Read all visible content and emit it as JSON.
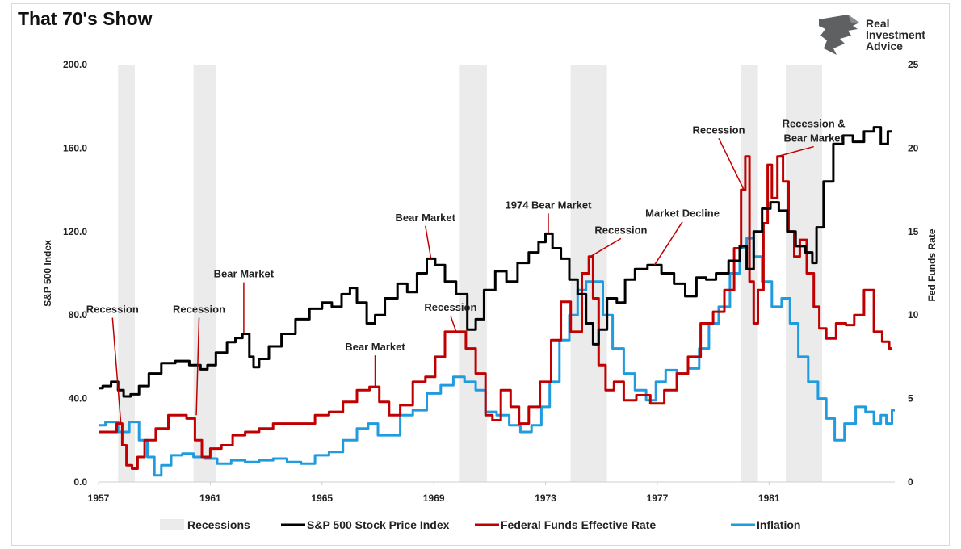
{
  "title": "That 70's Show",
  "logo": {
    "line1": "Real",
    "line2": "Investment",
    "line3": "Advice"
  },
  "chart_data": {
    "type": "line",
    "y_left": {
      "label": "S&P 500 Index",
      "range": [
        0,
        200
      ],
      "ticks": [
        "0.0",
        "40.0",
        "80.0",
        "120.0",
        "160.0",
        "200.0"
      ]
    },
    "y_right": {
      "label": "Fed Funds Rate",
      "range": [
        0,
        25
      ],
      "ticks": [
        "0",
        "5",
        "10",
        "15",
        "20",
        "25"
      ]
    },
    "x": {
      "range": [
        1957,
        1985.5
      ],
      "ticks": [
        "1957",
        "1961",
        "1965",
        "1969",
        "1973",
        "1977",
        "1981"
      ]
    },
    "recessions": [
      [
        1957.7,
        1958.3
      ],
      [
        1960.4,
        1961.2
      ],
      [
        1969.9,
        1970.9
      ],
      [
        1973.9,
        1975.2
      ],
      [
        1980.0,
        1980.6
      ],
      [
        1981.6,
        1982.9
      ]
    ],
    "series": [
      {
        "name": "S&P 500 Stock Price Index",
        "color": "#000000",
        "axis": "left",
        "points": [
          [
            1957.0,
            45
          ],
          [
            1957.3,
            46
          ],
          [
            1957.6,
            48
          ],
          [
            1957.8,
            44
          ],
          [
            1958.0,
            41
          ],
          [
            1958.3,
            42
          ],
          [
            1958.6,
            46
          ],
          [
            1959.0,
            52
          ],
          [
            1959.5,
            57
          ],
          [
            1960.0,
            58
          ],
          [
            1960.5,
            56
          ],
          [
            1960.8,
            54
          ],
          [
            1961.0,
            56
          ],
          [
            1961.4,
            62
          ],
          [
            1961.8,
            67
          ],
          [
            1962.0,
            69
          ],
          [
            1962.3,
            71
          ],
          [
            1962.5,
            60
          ],
          [
            1962.6,
            55
          ],
          [
            1962.9,
            59
          ],
          [
            1963.3,
            65
          ],
          [
            1963.8,
            71
          ],
          [
            1964.3,
            78
          ],
          [
            1964.8,
            83
          ],
          [
            1965.2,
            86
          ],
          [
            1965.5,
            84
          ],
          [
            1965.9,
            90
          ],
          [
            1966.1,
            93
          ],
          [
            1966.4,
            86
          ],
          [
            1966.8,
            76
          ],
          [
            1967.0,
            80
          ],
          [
            1967.5,
            88
          ],
          [
            1967.9,
            95
          ],
          [
            1968.2,
            91
          ],
          [
            1968.6,
            100
          ],
          [
            1968.9,
            107
          ],
          [
            1969.2,
            104
          ],
          [
            1969.6,
            96
          ],
          [
            1970.0,
            90
          ],
          [
            1970.4,
            73
          ],
          [
            1970.6,
            78
          ],
          [
            1971.0,
            92
          ],
          [
            1971.4,
            101
          ],
          [
            1971.8,
            96
          ],
          [
            1972.2,
            105
          ],
          [
            1972.6,
            110
          ],
          [
            1972.9,
            115
          ],
          [
            1973.1,
            119
          ],
          [
            1973.4,
            112
          ],
          [
            1973.7,
            107
          ],
          [
            1974.0,
            97
          ],
          [
            1974.3,
            90
          ],
          [
            1974.6,
            76
          ],
          [
            1974.8,
            66
          ],
          [
            1975.0,
            73
          ],
          [
            1975.4,
            88
          ],
          [
            1975.7,
            86
          ],
          [
            1976.0,
            97
          ],
          [
            1976.4,
            102
          ],
          [
            1976.9,
            104
          ],
          [
            1977.4,
            100
          ],
          [
            1977.8,
            95
          ],
          [
            1978.2,
            89
          ],
          [
            1978.6,
            98
          ],
          [
            1978.9,
            97
          ],
          [
            1979.3,
            100
          ],
          [
            1979.8,
            106
          ],
          [
            1980.1,
            113
          ],
          [
            1980.3,
            102
          ],
          [
            1980.6,
            120
          ],
          [
            1980.9,
            131
          ],
          [
            1981.2,
            134
          ],
          [
            1981.5,
            130
          ],
          [
            1981.8,
            120
          ],
          [
            1982.1,
            113
          ],
          [
            1982.5,
            110
          ],
          [
            1982.6,
            105
          ],
          [
            1982.8,
            122
          ],
          [
            1983.1,
            144
          ],
          [
            1983.5,
            162
          ],
          [
            1983.8,
            166
          ],
          [
            1984.2,
            163
          ],
          [
            1984.6,
            168
          ],
          [
            1984.9,
            170
          ],
          [
            1985.1,
            162
          ],
          [
            1985.4,
            168
          ]
        ]
      },
      {
        "name": "Federal Funds Effective Rate",
        "color": "#c00000",
        "axis": "right",
        "points": [
          [
            1957.0,
            3.0
          ],
          [
            1957.5,
            3.0
          ],
          [
            1957.8,
            3.5
          ],
          [
            1957.9,
            2.2
          ],
          [
            1958.1,
            1.0
          ],
          [
            1958.3,
            0.8
          ],
          [
            1958.5,
            1.5
          ],
          [
            1958.8,
            2.5
          ],
          [
            1959.3,
            3.2
          ],
          [
            1959.7,
            4.0
          ],
          [
            1960.0,
            4.0
          ],
          [
            1960.3,
            3.8
          ],
          [
            1960.6,
            2.5
          ],
          [
            1960.8,
            1.5
          ],
          [
            1961.2,
            2.0
          ],
          [
            1961.6,
            2.2
          ],
          [
            1962.0,
            2.8
          ],
          [
            1962.5,
            3.0
          ],
          [
            1963.0,
            3.2
          ],
          [
            1963.5,
            3.5
          ],
          [
            1964.0,
            3.5
          ],
          [
            1964.5,
            3.5
          ],
          [
            1965.0,
            4.0
          ],
          [
            1965.5,
            4.2
          ],
          [
            1966.0,
            4.8
          ],
          [
            1966.5,
            5.5
          ],
          [
            1966.9,
            5.7
          ],
          [
            1967.2,
            4.8
          ],
          [
            1967.6,
            4.0
          ],
          [
            1968.0,
            4.6
          ],
          [
            1968.5,
            6.0
          ],
          [
            1968.9,
            6.3
          ],
          [
            1969.2,
            7.5
          ],
          [
            1969.6,
            9.0
          ],
          [
            1970.0,
            9.0
          ],
          [
            1970.3,
            8.0
          ],
          [
            1970.7,
            6.5
          ],
          [
            1971.0,
            4.0
          ],
          [
            1971.2,
            3.7
          ],
          [
            1971.6,
            5.5
          ],
          [
            1971.9,
            4.5
          ],
          [
            1972.2,
            3.5
          ],
          [
            1972.6,
            4.5
          ],
          [
            1973.0,
            6.0
          ],
          [
            1973.4,
            8.5
          ],
          [
            1973.7,
            10.8
          ],
          [
            1974.1,
            9.0
          ],
          [
            1974.5,
            12.5
          ],
          [
            1974.6,
            13.5
          ],
          [
            1974.8,
            11.0
          ],
          [
            1975.0,
            7.0
          ],
          [
            1975.3,
            5.5
          ],
          [
            1975.6,
            6.0
          ],
          [
            1976.0,
            4.9
          ],
          [
            1976.5,
            5.2
          ],
          [
            1977.0,
            4.7
          ],
          [
            1977.5,
            5.5
          ],
          [
            1977.9,
            6.5
          ],
          [
            1978.3,
            7.5
          ],
          [
            1978.8,
            9.5
          ],
          [
            1979.2,
            10.2
          ],
          [
            1979.6,
            11.5
          ],
          [
            1979.9,
            14.0
          ],
          [
            1980.1,
            17.5
          ],
          [
            1980.2,
            19.5
          ],
          [
            1980.4,
            12.0
          ],
          [
            1980.5,
            9.5
          ],
          [
            1980.7,
            11.5
          ],
          [
            1980.9,
            15.5
          ],
          [
            1981.0,
            19.0
          ],
          [
            1981.2,
            17.0
          ],
          [
            1981.4,
            19.5
          ],
          [
            1981.6,
            18.0
          ],
          [
            1981.8,
            15.0
          ],
          [
            1982.0,
            13.5
          ],
          [
            1982.2,
            14.5
          ],
          [
            1982.5,
            12.5
          ],
          [
            1982.7,
            10.5
          ],
          [
            1982.9,
            9.2
          ],
          [
            1983.2,
            8.6
          ],
          [
            1983.6,
            9.5
          ],
          [
            1983.9,
            9.4
          ],
          [
            1984.2,
            10.0
          ],
          [
            1984.6,
            11.5
          ],
          [
            1984.9,
            9.0
          ],
          [
            1985.2,
            8.4
          ],
          [
            1985.4,
            8.0
          ]
        ]
      },
      {
        "name": "Inflation",
        "color": "#1f9bde",
        "axis": "right",
        "points": [
          [
            1957.0,
            3.4
          ],
          [
            1957.5,
            3.6
          ],
          [
            1957.9,
            3.0
          ],
          [
            1958.3,
            3.6
          ],
          [
            1958.6,
            2.5
          ],
          [
            1958.9,
            1.5
          ],
          [
            1959.1,
            0.4
          ],
          [
            1959.4,
            1.0
          ],
          [
            1959.8,
            1.6
          ],
          [
            1960.2,
            1.7
          ],
          [
            1960.6,
            1.5
          ],
          [
            1961.0,
            1.4
          ],
          [
            1961.5,
            1.1
          ],
          [
            1962.0,
            1.3
          ],
          [
            1962.5,
            1.2
          ],
          [
            1963.0,
            1.3
          ],
          [
            1963.5,
            1.4
          ],
          [
            1964.0,
            1.2
          ],
          [
            1964.5,
            1.1
          ],
          [
            1965.0,
            1.6
          ],
          [
            1965.5,
            1.8
          ],
          [
            1966.0,
            2.5
          ],
          [
            1966.5,
            3.2
          ],
          [
            1966.8,
            3.5
          ],
          [
            1967.2,
            2.8
          ],
          [
            1967.6,
            2.8
          ],
          [
            1968.0,
            4.0
          ],
          [
            1968.5,
            4.3
          ],
          [
            1969.0,
            5.3
          ],
          [
            1969.5,
            5.8
          ],
          [
            1969.9,
            6.3
          ],
          [
            1970.3,
            6.0
          ],
          [
            1970.7,
            5.5
          ],
          [
            1971.0,
            4.2
          ],
          [
            1971.5,
            4.0
          ],
          [
            1971.9,
            3.4
          ],
          [
            1972.3,
            3.0
          ],
          [
            1972.7,
            3.4
          ],
          [
            1973.0,
            4.5
          ],
          [
            1973.3,
            6.0
          ],
          [
            1973.7,
            8.5
          ],
          [
            1974.0,
            10.0
          ],
          [
            1974.3,
            11.5
          ],
          [
            1974.6,
            12.0
          ],
          [
            1974.9,
            12.0
          ],
          [
            1975.2,
            10.0
          ],
          [
            1975.6,
            8.0
          ],
          [
            1976.0,
            6.5
          ],
          [
            1976.4,
            5.5
          ],
          [
            1976.8,
            4.9
          ],
          [
            1977.1,
            6.0
          ],
          [
            1977.5,
            6.7
          ],
          [
            1977.9,
            6.5
          ],
          [
            1978.3,
            6.8
          ],
          [
            1978.7,
            8.0
          ],
          [
            1979.0,
            9.5
          ],
          [
            1979.4,
            10.5
          ],
          [
            1979.8,
            12.5
          ],
          [
            1980.1,
            14.0
          ],
          [
            1980.3,
            14.6
          ],
          [
            1980.6,
            13.5
          ],
          [
            1980.9,
            12.0
          ],
          [
            1981.3,
            10.5
          ],
          [
            1981.6,
            11.0
          ],
          [
            1981.9,
            9.5
          ],
          [
            1982.2,
            7.5
          ],
          [
            1982.6,
            6.0
          ],
          [
            1982.9,
            5.0
          ],
          [
            1983.2,
            3.8
          ],
          [
            1983.5,
            2.5
          ],
          [
            1983.9,
            3.5
          ],
          [
            1984.3,
            4.5
          ],
          [
            1984.6,
            4.2
          ],
          [
            1984.9,
            3.5
          ],
          [
            1985.1,
            4.0
          ],
          [
            1985.3,
            3.5
          ],
          [
            1985.5,
            4.3
          ]
        ]
      }
    ],
    "annotations": [
      {
        "text": "Recession",
        "x": 1957.8,
        "y": 3.5,
        "axis": "right",
        "label_x": 1957.5,
        "label_y": 81
      },
      {
        "text": "Recession",
        "x": 1960.5,
        "y": 4.0,
        "axis": "right",
        "label_x": 1960.6,
        "label_y": 81
      },
      {
        "text": "Bear Market",
        "x": 1962.2,
        "y": 71,
        "axis": "left",
        "label_x": 1962.2,
        "label_y": 98
      },
      {
        "text": "Bear Market",
        "x": 1966.9,
        "y": 5.7,
        "axis": "right",
        "label_x": 1966.9,
        "label_y": 63
      },
      {
        "text": "Recession",
        "x": 1969.8,
        "y": 9.0,
        "axis": "right",
        "label_x": 1969.6,
        "label_y": 82
      },
      {
        "text": "Bear Market",
        "x": 1968.9,
        "y": 107,
        "axis": "left",
        "label_x": 1968.7,
        "label_y": 125
      },
      {
        "text": "1974 Bear Market",
        "x": 1973.1,
        "y": 119,
        "axis": "left",
        "label_x": 1973.1,
        "label_y": 131
      },
      {
        "text": "Recession",
        "x": 1974.6,
        "y": 13.5,
        "axis": "right",
        "label_x": 1975.7,
        "label_y": 119
      },
      {
        "text": "Market Decline",
        "x": 1976.9,
        "y": 104,
        "axis": "left",
        "label_x": 1977.9,
        "label_y": 127
      },
      {
        "text": "Recession",
        "x": 1980.1,
        "y": 17.5,
        "axis": "right",
        "label_x": 1979.2,
        "label_y": 167
      },
      {
        "text": [
          "Recession &",
          "Bear Market"
        ],
        "x": 1981.3,
        "y": 19.5,
        "axis": "right",
        "label_x": 1982.6,
        "label_y": 170
      }
    ],
    "legend": {
      "position": "bottom",
      "items": [
        {
          "label": "Recessions",
          "kind": "band",
          "color": "#ebebeb"
        },
        {
          "label": "S&P 500 Stock Price Index",
          "kind": "line",
          "color": "#000000"
        },
        {
          "label": "Federal Funds Effective Rate",
          "kind": "line",
          "color": "#c00000"
        },
        {
          "label": "Inflation",
          "kind": "line",
          "color": "#1f9bde"
        }
      ]
    }
  }
}
